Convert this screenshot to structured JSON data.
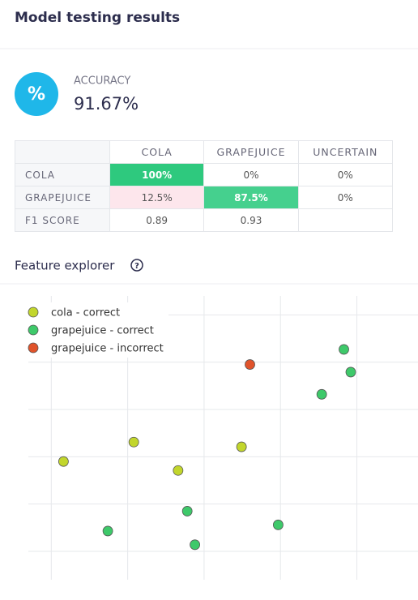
{
  "header": {
    "title": "Model testing results"
  },
  "accuracy": {
    "icon": "%",
    "label": "ACCURACY",
    "value": "91.67%"
  },
  "table": {
    "columns": [
      "COLA",
      "GRAPEJUICE",
      "UNCERTAIN"
    ],
    "rows": [
      {
        "label": "COLA",
        "cells": [
          "100%",
          "0%",
          "0%"
        ]
      },
      {
        "label": "GRAPEJUICE",
        "cells": [
          "12.5%",
          "87.5%",
          "0%"
        ]
      },
      {
        "label": "F1 SCORE",
        "cells": [
          "0.89",
          "0.93"
        ]
      }
    ]
  },
  "feature_explorer": {
    "title": "Feature explorer",
    "chart": {
      "type": "scatter",
      "xlim": [
        -0.3,
        4.8
      ],
      "ylim": [
        -0.6,
        5.4
      ],
      "grid": true,
      "series": [
        {
          "name": "cola - correct",
          "color": "#c2d62c",
          "x": [
            0.16,
            1.08,
            1.66,
            2.49
          ],
          "y": [
            1.9,
            2.31,
            1.71,
            2.21
          ]
        },
        {
          "name": "grapejuice - correct",
          "color": "#3ec96a",
          "x": [
            3.83,
            3.92,
            3.54,
            1.78,
            0.74,
            1.88,
            2.97
          ],
          "y": [
            4.27,
            3.79,
            3.32,
            0.85,
            0.43,
            0.14,
            0.56
          ]
        },
        {
          "name": "grapejuice - incorrect",
          "color": "#e0532b",
          "x": [
            2.6
          ],
          "y": [
            3.95
          ]
        }
      ]
    }
  }
}
